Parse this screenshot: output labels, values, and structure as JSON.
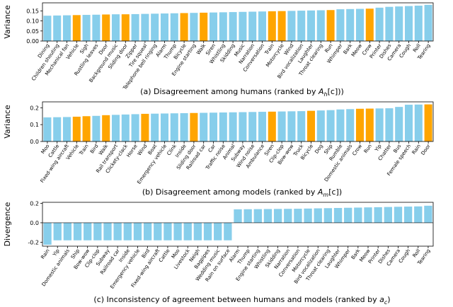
{
  "colors": {
    "human": "#87ceeb",
    "model": "#ffa500"
  },
  "chart_data": [
    {
      "type": "bar",
      "ylabel": "Variance",
      "ylim": [
        0,
        0.19
      ],
      "yticks": [
        0,
        0.05,
        0.1,
        0.15
      ],
      "ytick_labels": [
        "0.00",
        "0.05",
        "0.10",
        "0.15"
      ],
      "caption_prefix": "(a) Disagreement among humans (ranked by ",
      "caption_math": "A",
      "caption_sub": "h",
      "caption_arg": "[c]",
      "caption_suffix": "))",
      "categories": [
        "Dining",
        "Children shouting",
        "Mechanical fan",
        "Vehicle",
        "Sigh",
        "Rustling leaves",
        "Door",
        "Background music",
        "Sliding door",
        "Zipper",
        "Tire squeal",
        "Telephone bell ringing",
        "Alarm",
        "Thump",
        "Bicycle",
        "Engine starting",
        "Walk",
        "Siren",
        "Whistling",
        "Skidding",
        "Music",
        "Narration",
        "Conversation",
        "Train",
        "Motorcycle",
        "Wind",
        "Bird vocalization",
        "Laughter",
        "Throat clearing",
        "Run",
        "Whimper",
        "Bark",
        "Meow",
        "Crow",
        "Printer",
        "Dishes",
        "Camera",
        "Cough",
        "Roll",
        "Tearing"
      ],
      "values": [
        0.126,
        0.127,
        0.128,
        0.129,
        0.13,
        0.131,
        0.132,
        0.133,
        0.133,
        0.134,
        0.135,
        0.136,
        0.137,
        0.138,
        0.139,
        0.14,
        0.141,
        0.142,
        0.143,
        0.144,
        0.145,
        0.146,
        0.147,
        0.148,
        0.149,
        0.15,
        0.151,
        0.152,
        0.153,
        0.154,
        0.158,
        0.159,
        0.16,
        0.161,
        0.166,
        0.17,
        0.172,
        0.174,
        0.176,
        0.18
      ],
      "highlight": [
        false,
        false,
        false,
        true,
        false,
        false,
        true,
        false,
        true,
        false,
        false,
        false,
        false,
        false,
        true,
        false,
        true,
        false,
        false,
        false,
        false,
        false,
        false,
        true,
        true,
        false,
        false,
        false,
        false,
        true,
        false,
        false,
        false,
        true,
        false,
        false,
        false,
        false,
        false,
        false
      ]
    },
    {
      "type": "bar",
      "ylabel": "Variance",
      "ylim": [
        0,
        0.235
      ],
      "yticks": [
        0,
        0.1,
        0.2
      ],
      "ytick_labels": [
        "0.0",
        "0.1",
        "0.2"
      ],
      "caption_prefix": "(b) Disagreement among models (ranked by ",
      "caption_math": "A",
      "caption_sub": "m",
      "caption_arg": "[c]",
      "caption_suffix": ")",
      "categories": [
        "Moo",
        "Cattle",
        "Fixed-wing aircraft",
        "Vehicle",
        "Train",
        "Bird",
        "Walk",
        "Rail transport",
        "Clickety-clack",
        "Horse",
        "Wind",
        "Boat",
        "Emergency vehicle",
        "Clink",
        "Inside",
        "Sliding door",
        "Railroad car",
        "Car",
        "Traffic noise",
        "Animal",
        "Subway",
        "Wind noise",
        "Ambulance",
        "Siren",
        "Clip-clop",
        "Bow-wow",
        "Truck",
        "Bicycle",
        "Dog",
        "Ship",
        "Rumble",
        "Domestic animals",
        "Crow",
        "Run",
        "Yip",
        "Chatter",
        "Bus",
        "Female speech",
        "Rain",
        "Door"
      ],
      "values": [
        0.143,
        0.144,
        0.145,
        0.147,
        0.15,
        0.152,
        0.156,
        0.158,
        0.16,
        0.162,
        0.164,
        0.165,
        0.166,
        0.167,
        0.168,
        0.169,
        0.17,
        0.171,
        0.172,
        0.173,
        0.174,
        0.175,
        0.176,
        0.177,
        0.178,
        0.179,
        0.18,
        0.182,
        0.184,
        0.186,
        0.19,
        0.192,
        0.194,
        0.195,
        0.196,
        0.197,
        0.205,
        0.218,
        0.219,
        0.22
      ],
      "highlight": [
        false,
        false,
        false,
        true,
        true,
        false,
        true,
        false,
        false,
        false,
        true,
        false,
        false,
        false,
        false,
        true,
        false,
        false,
        false,
        false,
        false,
        false,
        false,
        true,
        false,
        false,
        false,
        true,
        false,
        false,
        false,
        false,
        true,
        true,
        false,
        false,
        false,
        false,
        false,
        true
      ]
    },
    {
      "type": "bar",
      "ylabel": "Divergence",
      "ylim": [
        -0.24,
        0.21
      ],
      "yticks": [
        -0.2,
        0,
        0.2
      ],
      "ytick_labels": [
        "-0.2",
        "0.0",
        "0.2"
      ],
      "caption_prefix": "(c) Inconsistency of agreement between humans and models (ranked by ",
      "caption_math": "a",
      "caption_sub": "c",
      "caption_arg": "",
      "caption_suffix": ")",
      "categories": [
        "Rain",
        "Yip",
        "Domestic animals",
        "Ship",
        "Bow-wow",
        "Clip-clop",
        "Subway",
        "Railroad car",
        "Inside",
        "Emergency vehicle",
        "Bird",
        "Fixed-wing aircraft",
        "Cattle",
        "Moo",
        "Livestock",
        "Neigh",
        "Bagpipes",
        "Wedding music",
        "Rain on surface",
        "Alarm",
        "Thump",
        "Engine starting",
        "Whistling",
        "Skidding",
        "Narration",
        "Conversation",
        "Motorcycle",
        "Bird vocalization",
        "Throat clearing",
        "Laughter",
        "Whimper",
        "Bark",
        "Meow",
        "Printer",
        "Dishes",
        "Camera",
        "Cough",
        "Roll",
        "Tearing"
      ],
      "values": [
        -0.225,
        -0.18,
        -0.18,
        -0.18,
        -0.18,
        -0.18,
        -0.18,
        -0.18,
        -0.18,
        -0.18,
        -0.18,
        -0.18,
        -0.18,
        -0.18,
        -0.18,
        -0.18,
        -0.18,
        -0.18,
        -0.18,
        0.138,
        0.139,
        0.14,
        0.141,
        0.142,
        0.143,
        0.144,
        0.146,
        0.148,
        0.15,
        0.152,
        0.154,
        0.156,
        0.158,
        0.16,
        0.162,
        0.164,
        0.166,
        0.168,
        0.175
      ]
    }
  ]
}
